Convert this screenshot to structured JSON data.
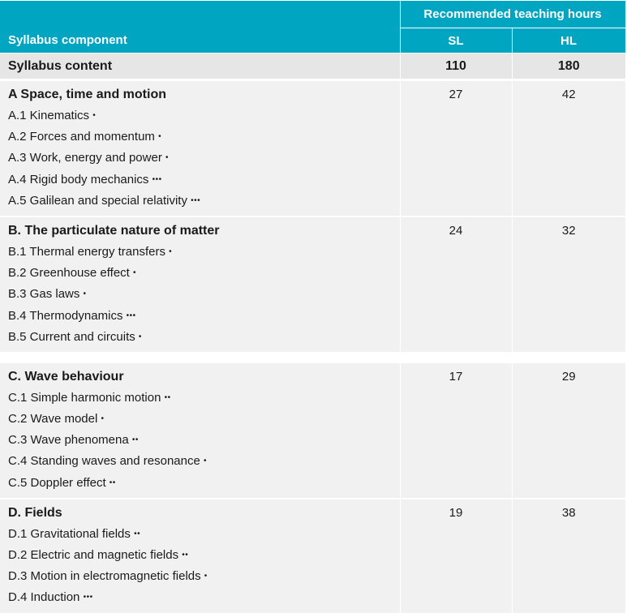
{
  "header": {
    "component_label": "Syllabus component",
    "hours_label": "Recommended teaching hours",
    "sl_label": "SL",
    "hl_label": "HL"
  },
  "total": {
    "label": "Syllabus content",
    "sl": "110",
    "hl": "180"
  },
  "sections": [
    {
      "title": "A Space, time and motion",
      "sl": "27",
      "hl": "42",
      "topics": [
        {
          "text": "A.1 Kinematics",
          "dots": "•"
        },
        {
          "text": "A.2 Forces and momentum",
          "dots": "•"
        },
        {
          "text": "A.3 Work, energy and power",
          "dots": "•"
        },
        {
          "text": "A.4 Rigid body mechanics",
          "dots": "•••"
        },
        {
          "text": "A.5 Galilean and special relativity",
          "dots": "•••"
        }
      ]
    },
    {
      "title": "B. The particulate nature of matter",
      "sl": "24",
      "hl": "32",
      "topics": [
        {
          "text": "B.1 Thermal energy transfers",
          "dots": "•"
        },
        {
          "text": "B.2 Greenhouse effect",
          "dots": "•"
        },
        {
          "text": "B.3 Gas laws",
          "dots": "•"
        },
        {
          "text": "B.4 Thermodynamics",
          "dots": "•••"
        },
        {
          "text": "B.5 Current and circuits",
          "dots": "•"
        }
      ]
    },
    {
      "title": "C. Wave behaviour",
      "sl": "17",
      "hl": "29",
      "topics": [
        {
          "text": "C.1 Simple harmonic motion",
          "dots": "••"
        },
        {
          "text": "C.2 Wave model",
          "dots": "•"
        },
        {
          "text": "C.3 Wave phenomena",
          "dots": "••"
        },
        {
          "text": "C.4 Standing waves and resonance",
          "dots": "•"
        },
        {
          "text": "C.5 Doppler effect",
          "dots": "••"
        }
      ]
    },
    {
      "title": "D. Fields",
      "sl": "19",
      "hl": "38",
      "topics": [
        {
          "text": "D.1 Gravitational fields",
          "dots": "••"
        },
        {
          "text": "D.2 Electric and magnetic fields",
          "dots": "••"
        },
        {
          "text": "D.3 Motion in electromagnetic fields",
          "dots": "•"
        },
        {
          "text": "D.4 Induction",
          "dots": "•••"
        }
      ]
    }
  ]
}
